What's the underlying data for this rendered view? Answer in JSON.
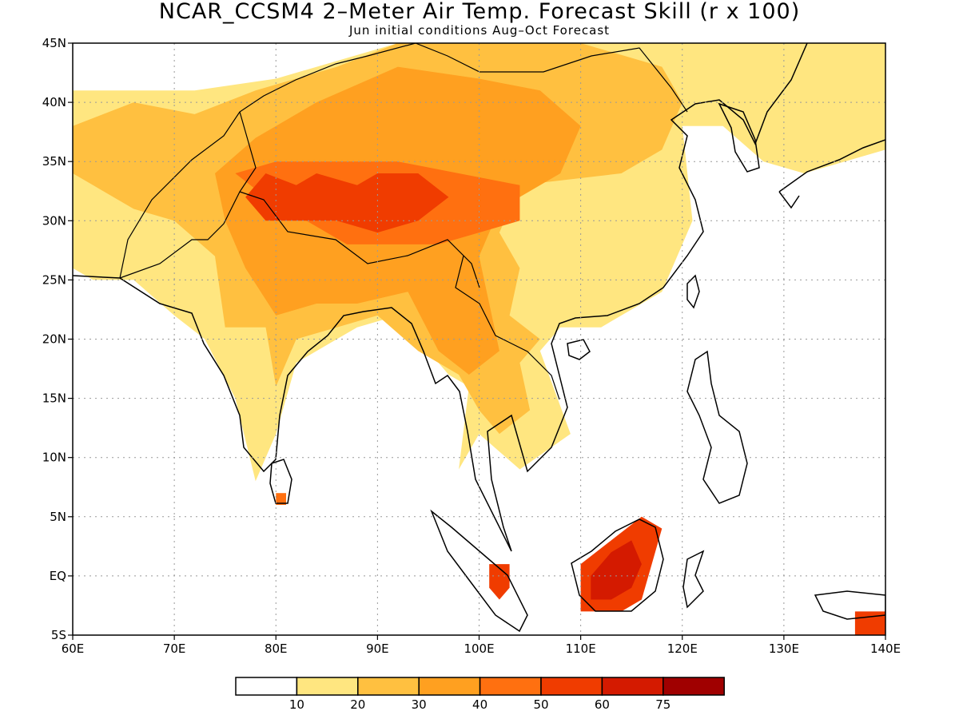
{
  "title": "NCAR_CCSM4 2–Meter Air Temp. Forecast Skill (r x 100)",
  "subtitle": "Jun initial conditions  Aug–Oct Forecast",
  "map": {
    "lon_range": [
      60,
      140
    ],
    "lat_range": [
      -5,
      45
    ],
    "lon_ticks": [
      {
        "value": 60,
        "label": "60E"
      },
      {
        "value": 70,
        "label": "70E"
      },
      {
        "value": 80,
        "label": "80E"
      },
      {
        "value": 90,
        "label": "90E"
      },
      {
        "value": 100,
        "label": "100E"
      },
      {
        "value": 110,
        "label": "110E"
      },
      {
        "value": 120,
        "label": "120E"
      },
      {
        "value": 130,
        "label": "130E"
      },
      {
        "value": 140,
        "label": "140E"
      }
    ],
    "lat_ticks": [
      {
        "value": 45,
        "label": "45N"
      },
      {
        "value": 40,
        "label": "40N"
      },
      {
        "value": 35,
        "label": "35N"
      },
      {
        "value": 30,
        "label": "30N"
      },
      {
        "value": 25,
        "label": "25N"
      },
      {
        "value": 20,
        "label": "20N"
      },
      {
        "value": 15,
        "label": "15N"
      },
      {
        "value": 10,
        "label": "10N"
      },
      {
        "value": 5,
        "label": "5N"
      },
      {
        "value": 0,
        "label": "EQ"
      },
      {
        "value": -5,
        "label": "5S"
      }
    ],
    "grid": true
  },
  "colorbar": {
    "colors": [
      "#ffffff",
      "#ffe680",
      "#ffc040",
      "#ffa020",
      "#ff7010",
      "#f03c00",
      "#d41a00",
      "#a00000"
    ],
    "labels": [
      "10",
      "20",
      "30",
      "40",
      "50",
      "60",
      "75"
    ]
  },
  "skill_regions": [
    {
      "level": 1,
      "points": [
        [
          60,
          41
        ],
        [
          72,
          41
        ],
        [
          80,
          42
        ],
        [
          92,
          45
        ],
        [
          140,
          45
        ],
        [
          140,
          36
        ],
        [
          132,
          34
        ],
        [
          128,
          35
        ],
        [
          124,
          38
        ],
        [
          120,
          38
        ],
        [
          121,
          30
        ],
        [
          118,
          24
        ],
        [
          112,
          21
        ],
        [
          108,
          21
        ],
        [
          106,
          19
        ],
        [
          109,
          12
        ],
        [
          104,
          9
        ],
        [
          100,
          12
        ],
        [
          98,
          9
        ],
        [
          99,
          16
        ],
        [
          97,
          17
        ],
        [
          92,
          22
        ],
        [
          88,
          21
        ],
        [
          86,
          20
        ],
        [
          82,
          18
        ],
        [
          80,
          12
        ],
        [
          78,
          8
        ],
        [
          76,
          15
        ],
        [
          73,
          20
        ],
        [
          70,
          22
        ],
        [
          66,
          25
        ],
        [
          62,
          25
        ],
        [
          60,
          26
        ]
      ]
    },
    {
      "level": 2,
      "points": [
        [
          60,
          38
        ],
        [
          66,
          40
        ],
        [
          72,
          39
        ],
        [
          78,
          41
        ],
        [
          86,
          43
        ],
        [
          92,
          45
        ],
        [
          110,
          45
        ],
        [
          118,
          43
        ],
        [
          120,
          40
        ],
        [
          118,
          36
        ],
        [
          114,
          34
        ],
        [
          104,
          33
        ],
        [
          102,
          29
        ],
        [
          104,
          26
        ],
        [
          103,
          22
        ],
        [
          106,
          20
        ],
        [
          104,
          18
        ],
        [
          105,
          14
        ],
        [
          102,
          12
        ],
        [
          100,
          14
        ],
        [
          98,
          17
        ],
        [
          94,
          19
        ],
        [
          90,
          22
        ],
        [
          86,
          21
        ],
        [
          82,
          20
        ],
        [
          80,
          16
        ],
        [
          79,
          21
        ],
        [
          75,
          21
        ],
        [
          74,
          27
        ],
        [
          70,
          30
        ],
        [
          66,
          31
        ],
        [
          62,
          33
        ],
        [
          60,
          34
        ]
      ]
    },
    {
      "level": 3,
      "points": [
        [
          74,
          34
        ],
        [
          78,
          37
        ],
        [
          84,
          40
        ],
        [
          92,
          43
        ],
        [
          100,
          42
        ],
        [
          106,
          41
        ],
        [
          110,
          38
        ],
        [
          108,
          34
        ],
        [
          102,
          31
        ],
        [
          100,
          27
        ],
        [
          101,
          23
        ],
        [
          102,
          19
        ],
        [
          99,
          17
        ],
        [
          96,
          19
        ],
        [
          93,
          24
        ],
        [
          88,
          23
        ],
        [
          84,
          23
        ],
        [
          80,
          22
        ],
        [
          77,
          26
        ],
        [
          75,
          30
        ]
      ]
    },
    {
      "level": 4,
      "points": [
        [
          76,
          34
        ],
        [
          80,
          35
        ],
        [
          86,
          35
        ],
        [
          92,
          35
        ],
        [
          98,
          34
        ],
        [
          104,
          33
        ],
        [
          104,
          30
        ],
        [
          100,
          29
        ],
        [
          96,
          28
        ],
        [
          92,
          28
        ],
        [
          87,
          28
        ],
        [
          83,
          30
        ],
        [
          79,
          32
        ]
      ]
    },
    {
      "level": 5,
      "points": [
        [
          77,
          32
        ],
        [
          79,
          34
        ],
        [
          82,
          33
        ],
        [
          84,
          34
        ],
        [
          88,
          33
        ],
        [
          90,
          34
        ],
        [
          94,
          34
        ],
        [
          97,
          32
        ],
        [
          94,
          30
        ],
        [
          90,
          29
        ],
        [
          86,
          30
        ],
        [
          82,
          30
        ],
        [
          79,
          30
        ]
      ]
    },
    {
      "level": 5,
      "points": [
        [
          110,
          1
        ],
        [
          113,
          3
        ],
        [
          116,
          5
        ],
        [
          118,
          4
        ],
        [
          117,
          1
        ],
        [
          116,
          -2
        ],
        [
          114,
          -3
        ],
        [
          110,
          -3
        ]
      ]
    },
    {
      "level": 6,
      "points": [
        [
          111,
          0
        ],
        [
          113,
          2
        ],
        [
          115,
          3
        ],
        [
          116,
          1
        ],
        [
          115,
          -1
        ],
        [
          113,
          -2
        ],
        [
          111,
          -2
        ]
      ]
    },
    {
      "level": 5,
      "points": [
        [
          101,
          1
        ],
        [
          103,
          1
        ],
        [
          103,
          -1
        ],
        [
          102,
          -2
        ],
        [
          101,
          -1
        ]
      ]
    },
    {
      "level": 5,
      "points": [
        [
          137,
          -3
        ],
        [
          140,
          -3
        ],
        [
          140,
          -5
        ],
        [
          137,
          -5
        ]
      ]
    },
    {
      "level": 4,
      "points": [
        [
          80,
          7
        ],
        [
          81,
          7
        ],
        [
          81,
          6
        ],
        [
          80,
          6
        ]
      ]
    }
  ]
}
